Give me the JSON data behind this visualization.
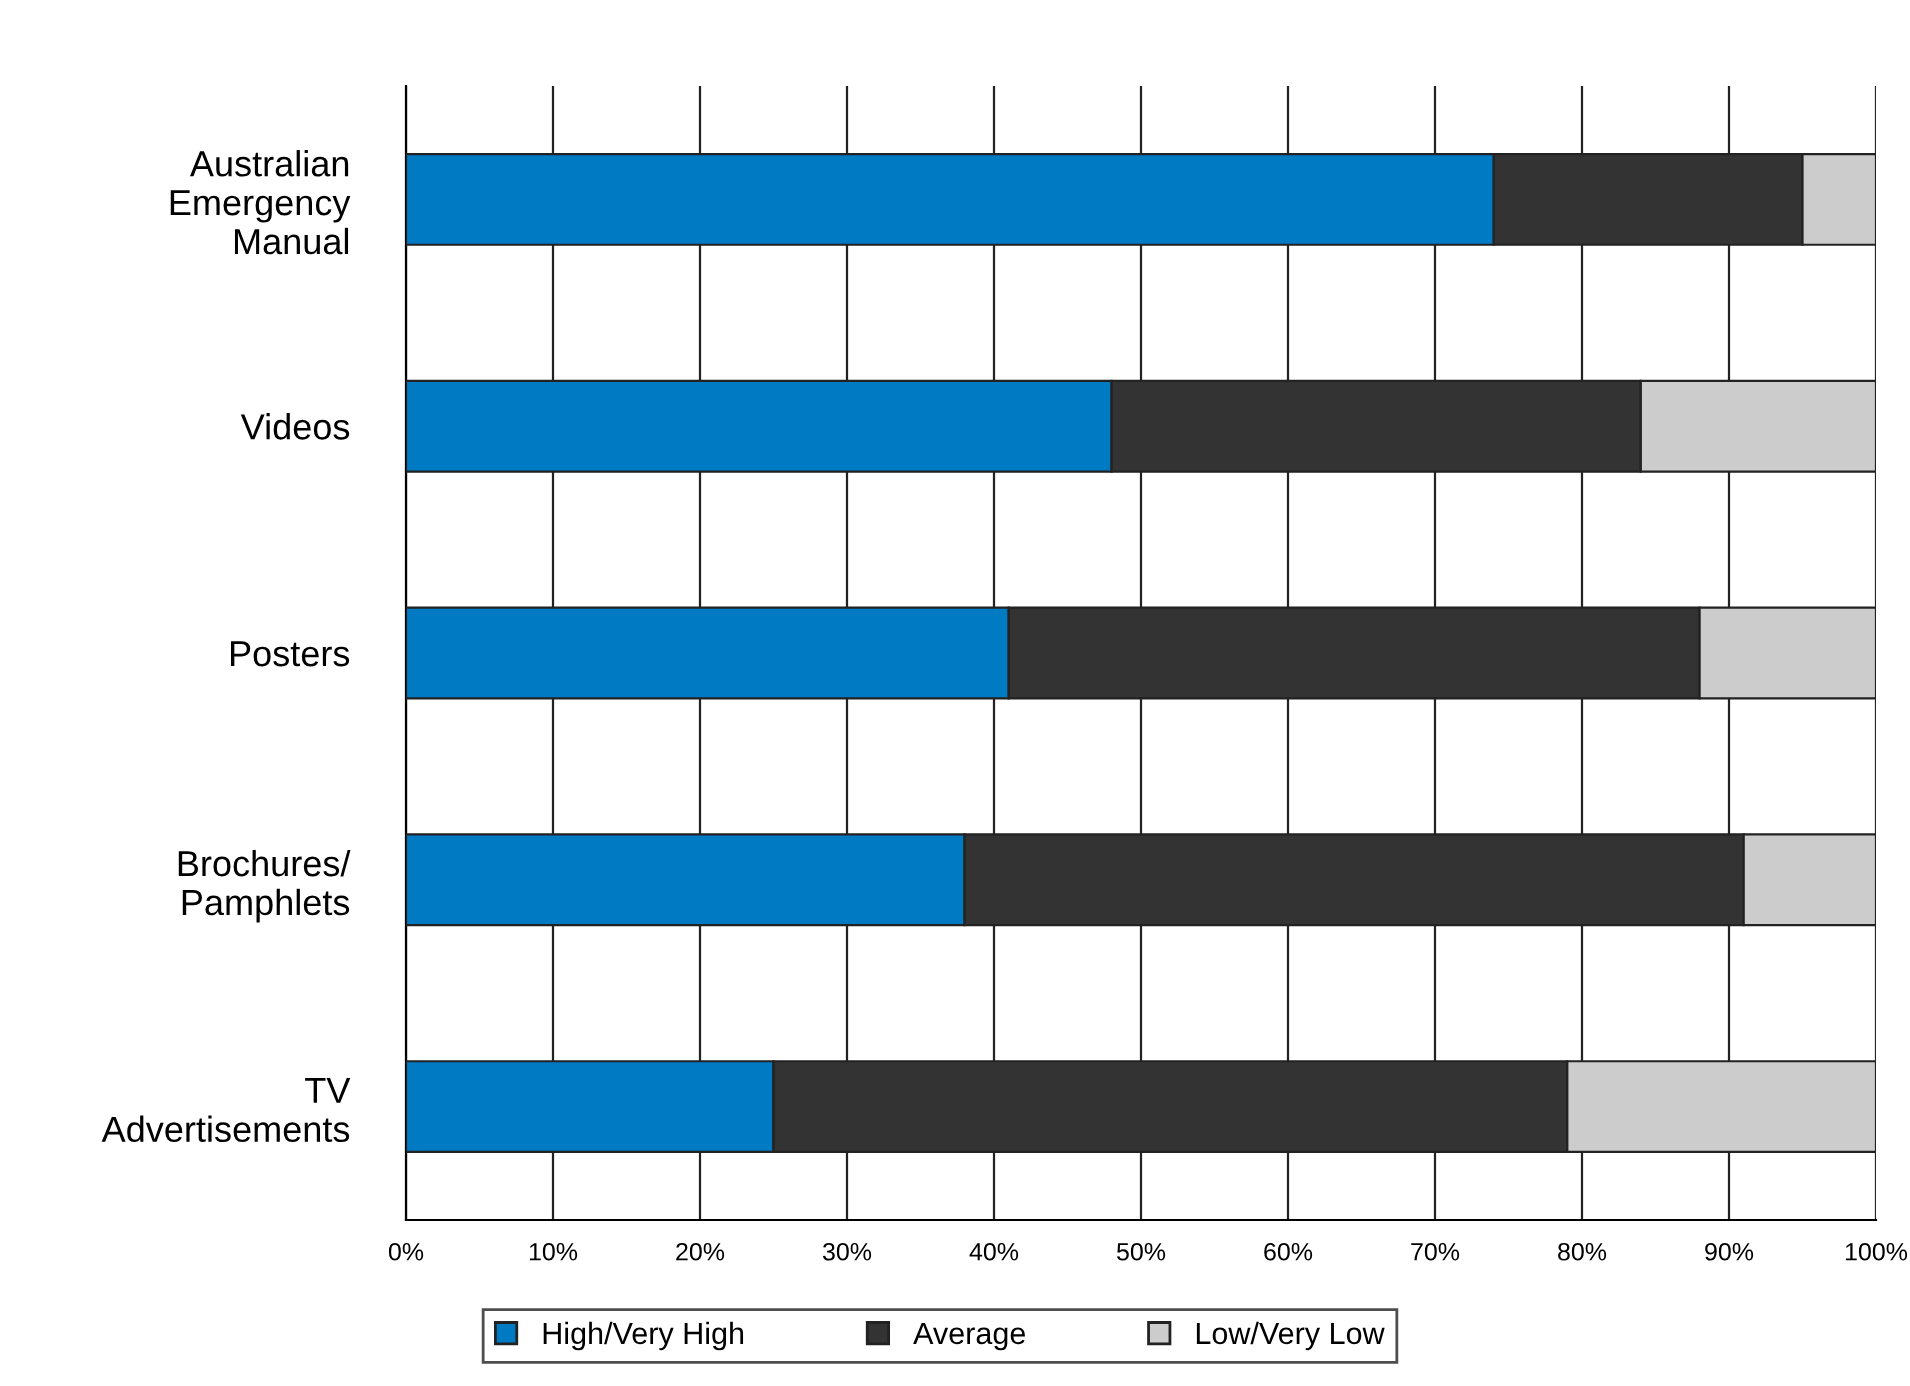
{
  "chart_data": {
    "type": "bar",
    "orientation": "horizontal",
    "stacked": true,
    "categories": [
      "Australian\nEmergency\nManual",
      "Videos",
      "Posters",
      "Brochures/\nPamphlets",
      "TV\nAdvertisements"
    ],
    "series": [
      {
        "name": "High/Very High",
        "color": "#007ac3",
        "values": [
          74,
          48,
          41,
          38,
          25
        ]
      },
      {
        "name": "Average",
        "color": "#333333",
        "values": [
          21,
          36,
          47,
          53,
          54
        ]
      },
      {
        "name": "Low/Very Low",
        "color": "#cccccc",
        "values": [
          5,
          16,
          12,
          9,
          21
        ]
      }
    ],
    "xlim": [
      0,
      100
    ],
    "xticks": [
      {
        "value": 0,
        "label": "0%"
      },
      {
        "value": 10,
        "label": "10%"
      },
      {
        "value": 20,
        "label": "20%"
      },
      {
        "value": 30,
        "label": "30%"
      },
      {
        "value": 40,
        "label": "40%"
      },
      {
        "value": 50,
        "label": "50%"
      },
      {
        "value": 60,
        "label": "60%"
      },
      {
        "value": 70,
        "label": "70%"
      },
      {
        "value": 80,
        "label": "80%"
      },
      {
        "value": 90,
        "label": "90%"
      },
      {
        "value": 100,
        "label": "100%"
      }
    ],
    "grid": "x",
    "legend": "bottom"
  }
}
